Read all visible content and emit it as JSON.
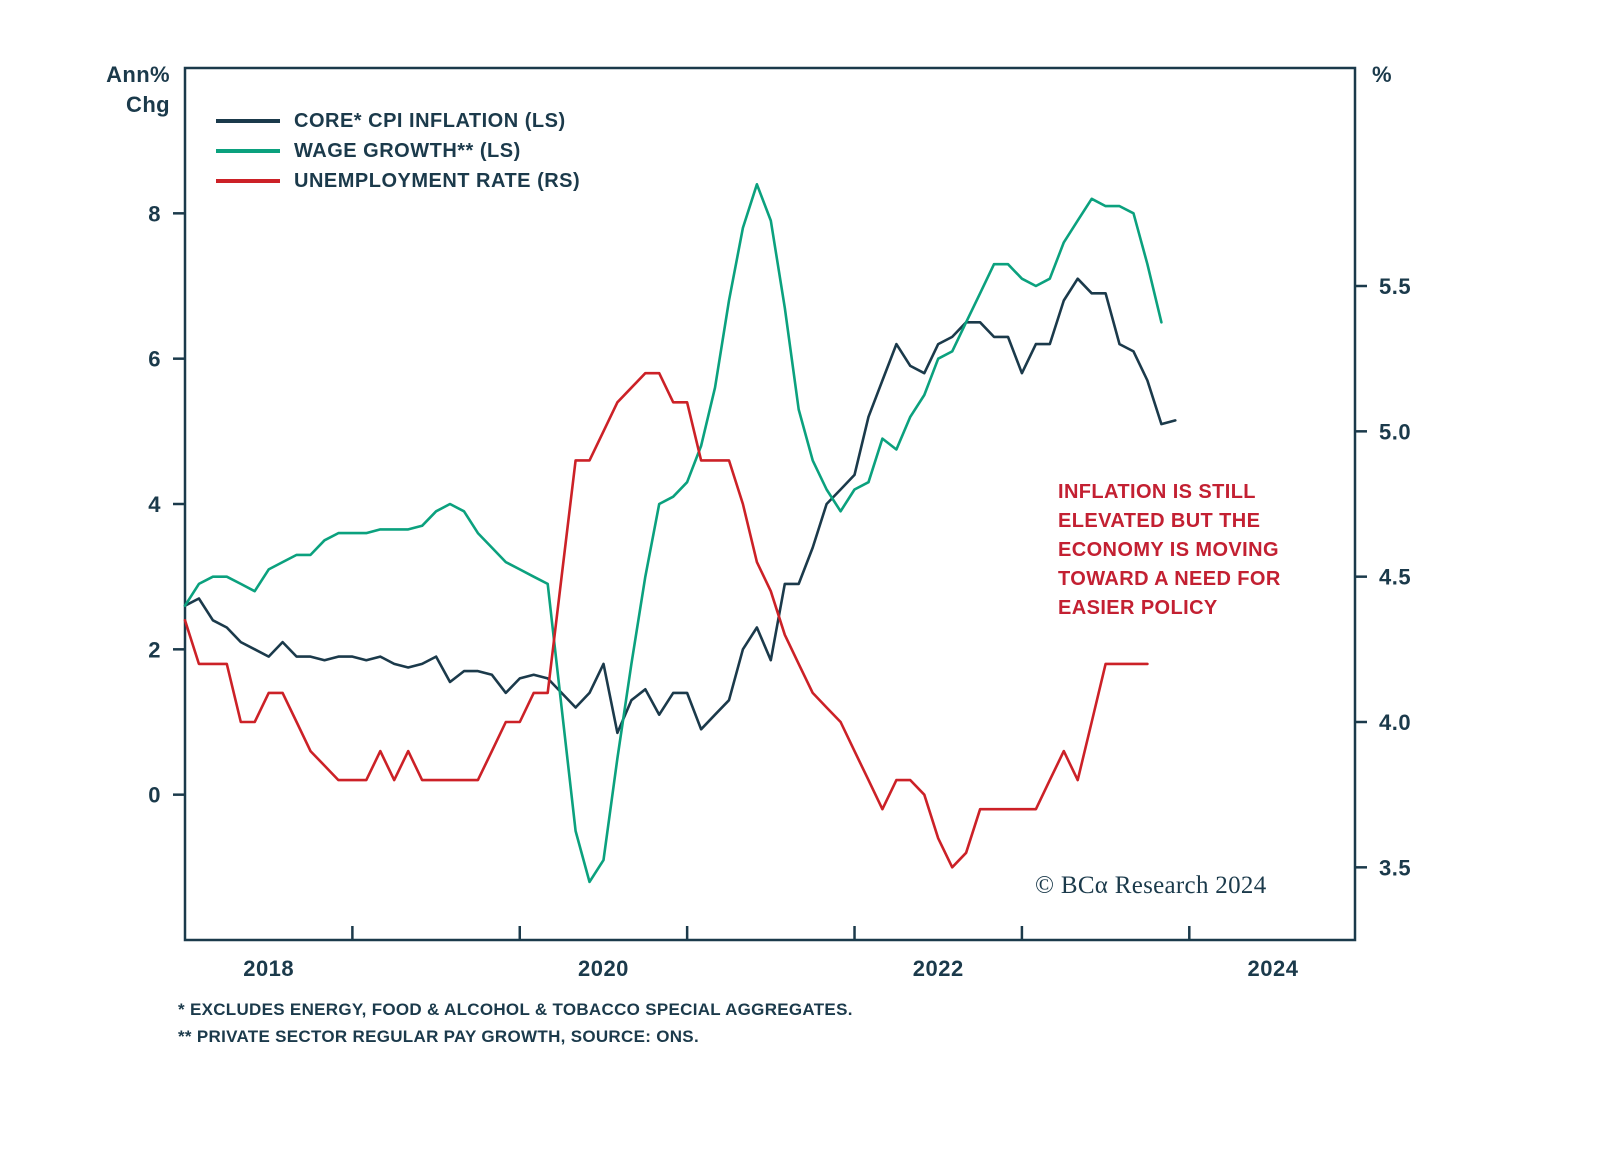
{
  "chart_data": {
    "type": "line",
    "axis_color": "#1b3a4b",
    "text_color": "#1b3a4b",
    "left_axis": {
      "label_line1": "Ann%",
      "label_line2": "Chg",
      "ticks": [
        8,
        6,
        4,
        2,
        0
      ],
      "range": [
        -2,
        10
      ]
    },
    "right_axis": {
      "label": "%",
      "ticks": [
        5.5,
        5.0,
        4.5,
        4.0,
        3.5
      ],
      "range": [
        3.25,
        6.25
      ]
    },
    "x_axis": {
      "range": [
        2018.0,
        2024.99
      ],
      "tick_positions": [
        2019,
        2020,
        2021,
        2022,
        2023,
        2024
      ],
      "labels": [
        {
          "t": 2018.5,
          "text": "2018"
        },
        {
          "t": 2020.5,
          "text": "2020"
        },
        {
          "t": 2022.5,
          "text": "2022"
        },
        {
          "t": 2024.5,
          "text": "2024"
        }
      ]
    },
    "series": [
      {
        "name": "core-cpi-inflation",
        "legend": "CORE* CPI INFLATION (LS)",
        "color": "#1b3a4b",
        "axis": "left",
        "start": 2018.0,
        "step": "monthly",
        "values": [
          2.6,
          2.7,
          2.4,
          2.3,
          2.1,
          2.0,
          1.9,
          2.1,
          1.9,
          1.9,
          1.85,
          1.9,
          1.9,
          1.85,
          1.9,
          1.8,
          1.75,
          1.8,
          1.9,
          1.55,
          1.7,
          1.7,
          1.65,
          1.4,
          1.6,
          1.65,
          1.6,
          1.4,
          1.2,
          1.4,
          1.8,
          0.85,
          1.3,
          1.45,
          1.1,
          1.4,
          1.4,
          0.9,
          1.1,
          1.3,
          2.0,
          2.3,
          1.85,
          2.9,
          2.9,
          3.4,
          4.0,
          4.2,
          4.4,
          5.2,
          5.7,
          6.2,
          5.9,
          5.8,
          6.2,
          6.3,
          6.5,
          6.5,
          6.3,
          6.3,
          5.8,
          6.2,
          6.2,
          6.8,
          7.1,
          6.9,
          6.9,
          6.2,
          6.1,
          5.7,
          5.1,
          5.15
        ]
      },
      {
        "name": "wage-growth",
        "legend": "WAGE GROWTH** (LS)",
        "color": "#0ba17e",
        "axis": "left",
        "start": 2018.0,
        "step": "monthly",
        "values": [
          2.6,
          2.9,
          3.0,
          3.0,
          2.9,
          2.8,
          3.1,
          3.2,
          3.3,
          3.3,
          3.5,
          3.6,
          3.6,
          3.6,
          3.65,
          3.65,
          3.65,
          3.7,
          3.9,
          4.0,
          3.9,
          3.6,
          3.4,
          3.2,
          3.1,
          3.0,
          2.9,
          1.2,
          -0.5,
          -1.2,
          -0.9,
          0.5,
          1.8,
          3.0,
          4.0,
          4.1,
          4.3,
          4.8,
          5.6,
          6.8,
          7.8,
          8.4,
          7.9,
          6.7,
          5.3,
          4.6,
          4.2,
          3.9,
          4.2,
          4.3,
          4.9,
          4.75,
          5.2,
          5.5,
          6.0,
          6.1,
          6.5,
          6.9,
          7.3,
          7.3,
          7.1,
          7.0,
          7.1,
          7.6,
          7.9,
          8.2,
          8.1,
          8.1,
          8.0,
          7.3,
          6.5
        ]
      },
      {
        "name": "unemployment-rate",
        "legend": "UNEMPLOYMENT RATE (RS)",
        "color": "#cc2127",
        "axis": "right",
        "start": 2018.0,
        "step": "monthly",
        "values": [
          4.35,
          4.2,
          4.2,
          4.2,
          4.0,
          4.0,
          4.1,
          4.1,
          4.0,
          3.9,
          3.85,
          3.8,
          3.8,
          3.8,
          3.9,
          3.8,
          3.9,
          3.8,
          3.8,
          3.8,
          3.8,
          3.8,
          3.9,
          4.0,
          4.0,
          4.1,
          4.1,
          4.5,
          4.9,
          4.9,
          5.0,
          5.1,
          5.15,
          5.2,
          5.2,
          5.1,
          5.1,
          4.9,
          4.9,
          4.9,
          4.75,
          4.55,
          4.45,
          4.3,
          4.2,
          4.1,
          4.05,
          4.0,
          3.9,
          3.8,
          3.7,
          3.8,
          3.8,
          3.75,
          3.6,
          3.5,
          3.55,
          3.7,
          3.7,
          3.7,
          3.7,
          3.7,
          3.8,
          3.9,
          3.8,
          4.0,
          4.2,
          4.2,
          4.2,
          4.2
        ]
      }
    ],
    "annotation": {
      "text": "INFLATION IS STILL ELEVATED BUT THE ECONOMY IS MOVING TOWARD A NEED FOR EASIER POLICY",
      "color": "#c32032"
    },
    "copyright": "© BCα Research 2024",
    "footnotes": [
      "*  EXCLUDES ENERGY, FOOD & ALCOHOL & TOBACCO SPECIAL AGGREGATES.",
      "** PRIVATE SECTOR REGULAR PAY GROWTH, SOURCE: ONS."
    ]
  }
}
